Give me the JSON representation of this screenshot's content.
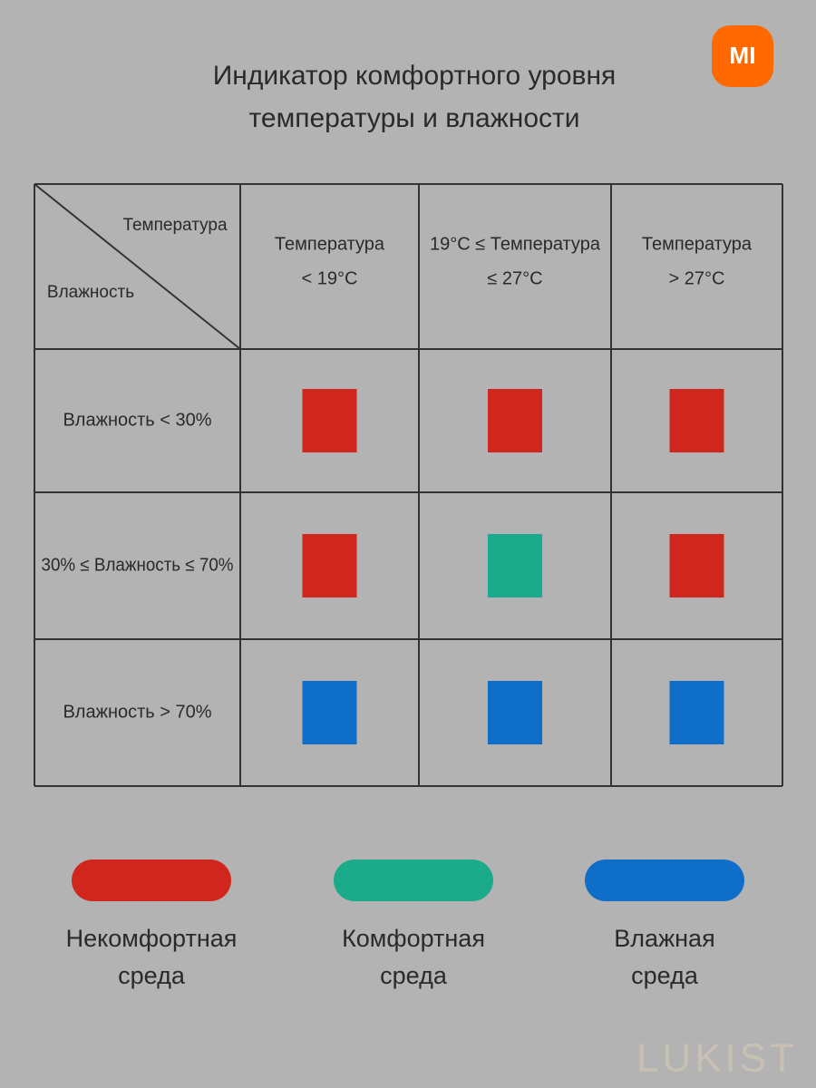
{
  "logo": "MI",
  "header": {
    "title": [
      "Индикатор комфортного уровня",
      "температуры и влажности"
    ]
  },
  "table": {
    "corner": {
      "top": "Температура",
      "bottom": "Влажность"
    },
    "columns": [
      [
        "Температура",
        "< 19°C"
      ],
      [
        "19°C ≤ Температура",
        "≤ 27°C"
      ],
      [
        "Температура",
        "> 27°C"
      ]
    ],
    "rows": [
      {
        "label": "Влажность < 30%",
        "cells": [
          "#d0261e",
          "#d0261e",
          "#d0261e"
        ]
      },
      {
        "label": "30% ≤ Влажность ≤ 70%",
        "cells": [
          "#d0261e",
          "#1bab8b",
          "#d0261e"
        ]
      },
      {
        "label": "Влажность > 70%",
        "cells": [
          "#0f6fc8",
          "#0f6fc8",
          "#0f6fc8"
        ]
      }
    ]
  },
  "legend": [
    {
      "color": "#d0261e",
      "label": [
        "Некомфортная",
        "среда"
      ]
    },
    {
      "color": "#1bab8b",
      "label": [
        "Комфортная",
        "среда"
      ]
    },
    {
      "color": "#0f6fc8",
      "label": [
        "Влажная",
        "среда"
      ]
    }
  ],
  "watermark": "LUKIST"
}
